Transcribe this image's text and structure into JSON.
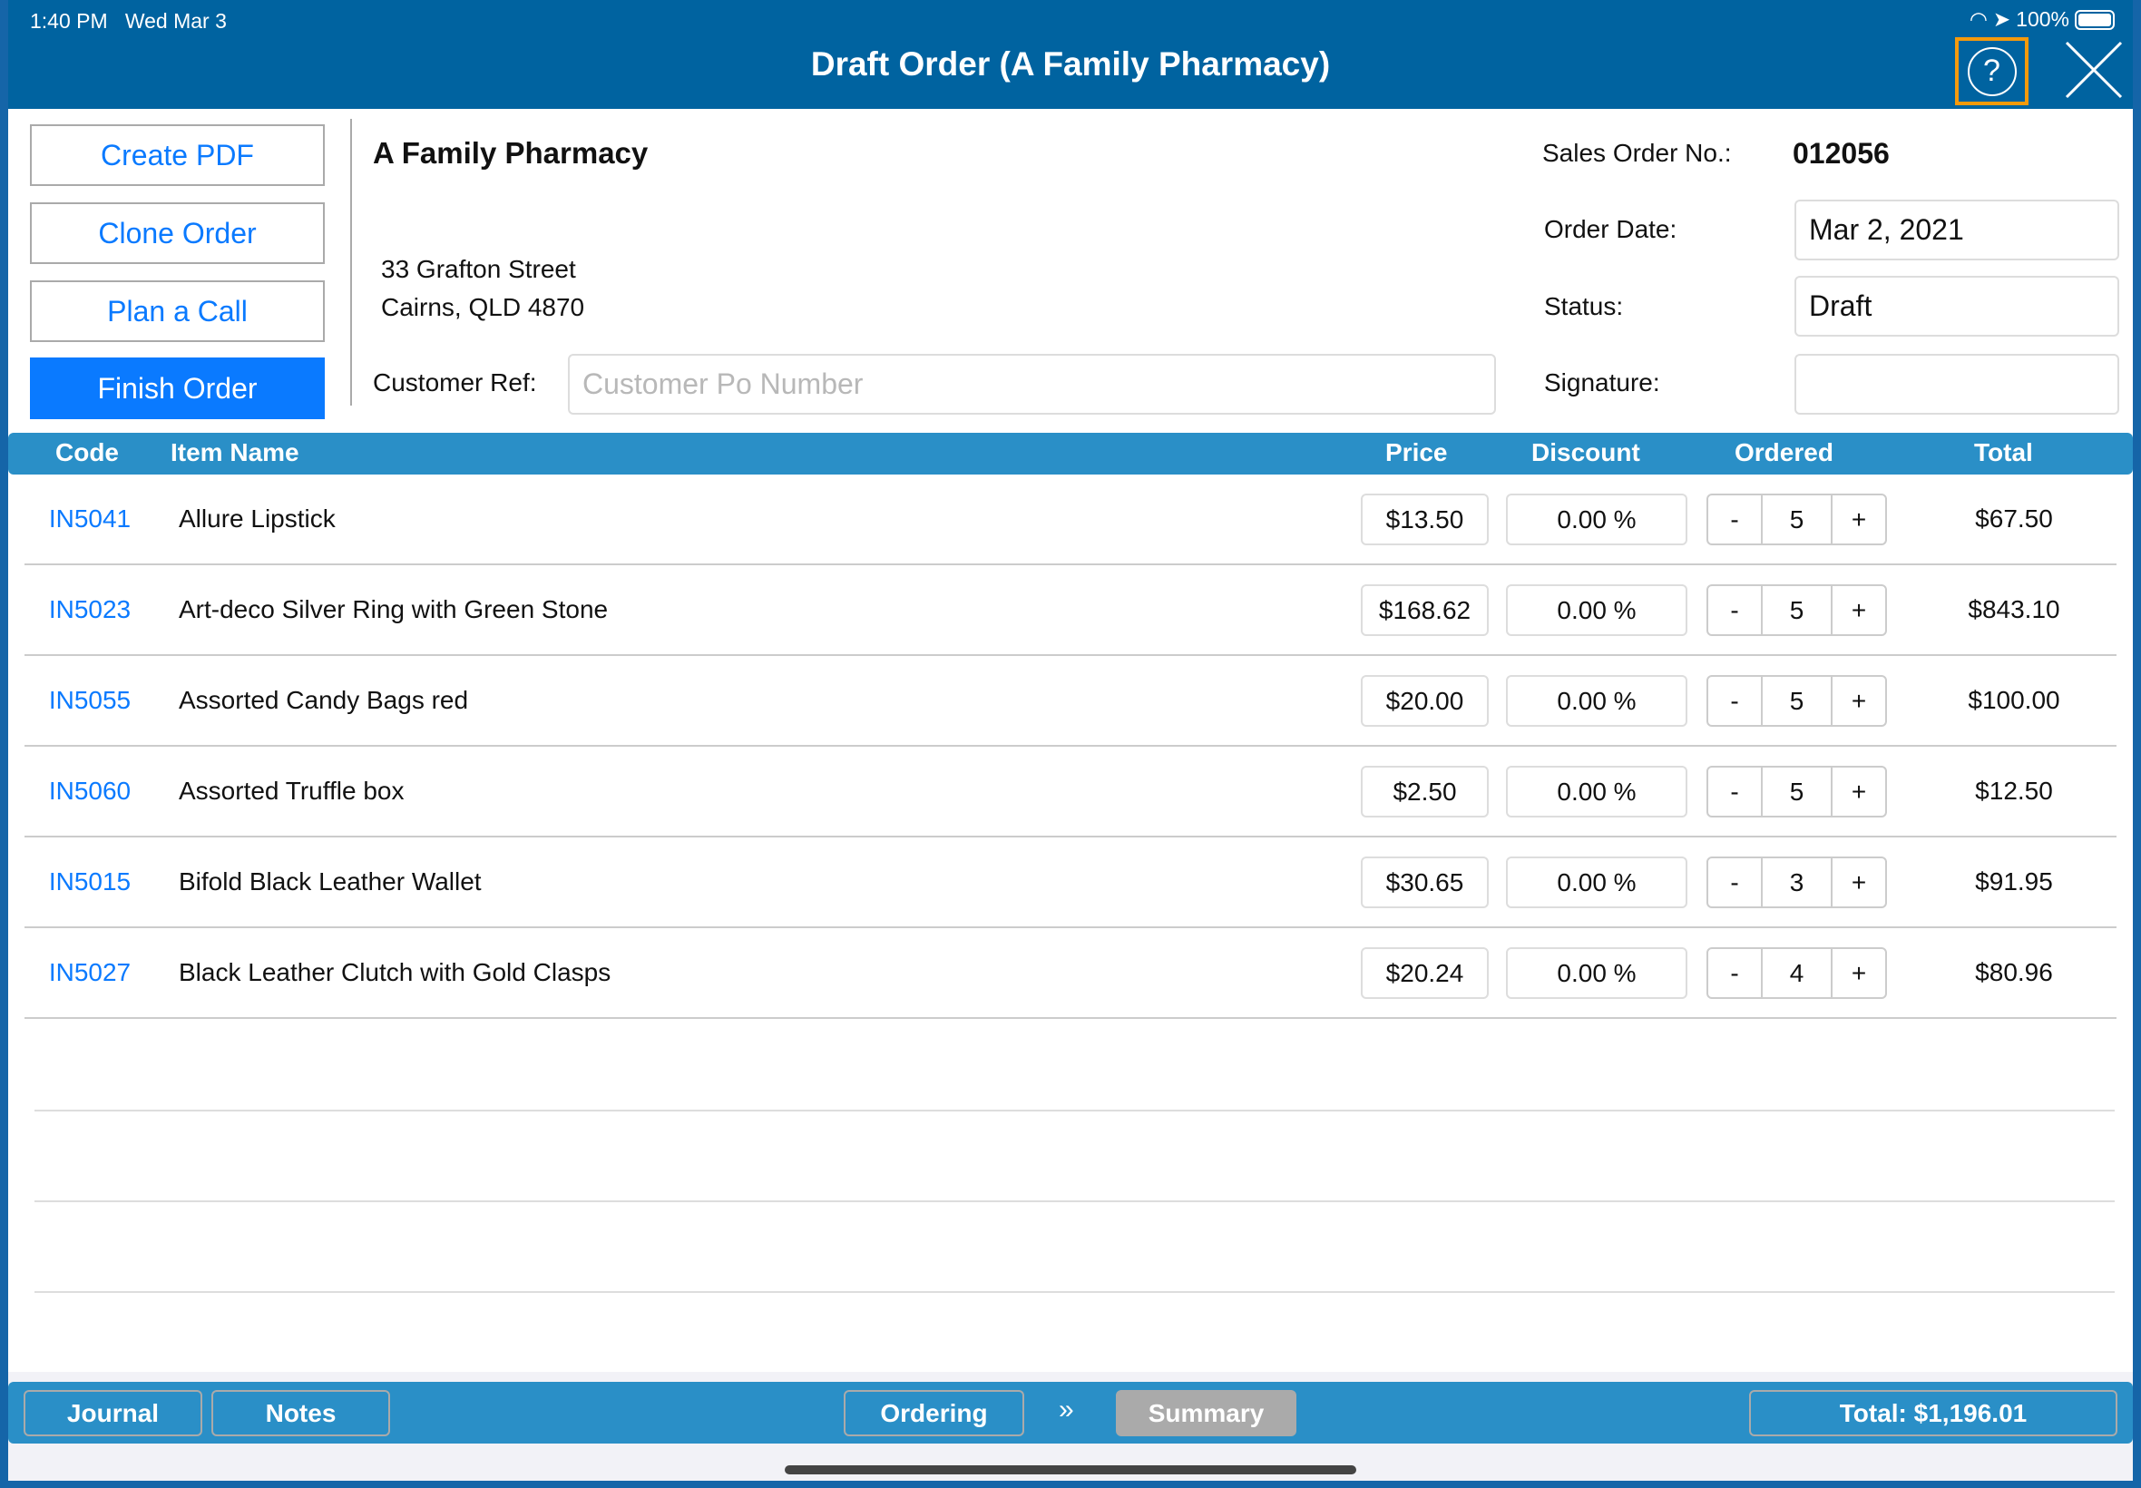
{
  "status_bar": {
    "time": "1:40 PM",
    "date": "Wed Mar 3",
    "battery": "100%"
  },
  "header": {
    "title": "Draft Order  (A Family Pharmacy)",
    "help_icon": "question-circle-icon",
    "close_icon": "close-x-icon"
  },
  "actions": {
    "create_pdf": "Create PDF",
    "clone_order": "Clone Order",
    "plan_call": "Plan a Call",
    "finish_order": "Finish Order"
  },
  "customer": {
    "name": "A Family Pharmacy",
    "address_line1": "33 Grafton Street",
    "address_line2": "Cairns, QLD 4870",
    "ref_label": "Customer Ref:",
    "ref_value": "",
    "ref_placeholder": "Customer Po Number"
  },
  "order": {
    "sales_order_label": "Sales Order No.:",
    "sales_order_no": "012056",
    "date_label": "Order Date:",
    "date": "Mar 2, 2021",
    "status_label": "Status:",
    "status": "Draft",
    "signature_label": "Signature:",
    "signature": ""
  },
  "table": {
    "headers": {
      "code": "Code",
      "item": "Item Name",
      "price": "Price",
      "discount": "Discount",
      "ordered": "Ordered",
      "total": "Total"
    },
    "rows": [
      {
        "code": "IN5041",
        "name": "Allure Lipstick",
        "price": "$13.50",
        "discount": "0.00 %",
        "qty": "5",
        "total": "$67.50"
      },
      {
        "code": "IN5023",
        "name": "Art-deco Silver Ring with Green Stone",
        "price": "$168.62",
        "discount": "0.00 %",
        "qty": "5",
        "total": "$843.10"
      },
      {
        "code": "IN5055",
        "name": "Assorted Candy Bags red",
        "price": "$20.00",
        "discount": "0.00 %",
        "qty": "5",
        "total": "$100.00"
      },
      {
        "code": "IN5060",
        "name": "Assorted Truffle box",
        "price": "$2.50",
        "discount": "0.00 %",
        "qty": "5",
        "total": "$12.50"
      },
      {
        "code": "IN5015",
        "name": "Bifold Black Leather Wallet",
        "price": "$30.65",
        "discount": "0.00 %",
        "qty": "3",
        "total": "$91.95"
      },
      {
        "code": "IN5027",
        "name": "Black Leather Clutch with Gold Clasps",
        "price": "$20.24",
        "discount": "0.00 %",
        "qty": "4",
        "total": "$80.96"
      }
    ],
    "minus": "-",
    "plus": "+"
  },
  "footer": {
    "journal": "Journal",
    "notes": "Notes",
    "ordering": "Ordering",
    "separator": "»",
    "summary": "Summary",
    "total": "Total: $1,196.01"
  },
  "colors": {
    "header": "#0063a0",
    "bar": "#2a8fc7",
    "accent": "#0a7aff",
    "highlight": "#f59a0c"
  }
}
